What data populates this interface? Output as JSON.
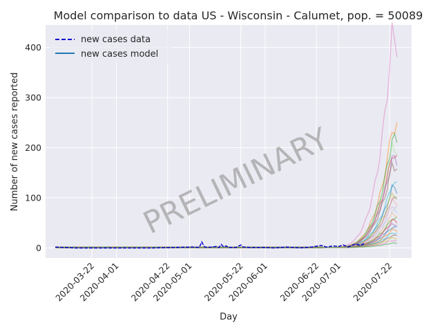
{
  "chart_data": {
    "type": "line",
    "title": "Model comparison to data US - Wisconsin - Calumet, pop. = 50089",
    "xlabel": "Day",
    "ylabel": "Number of new cases reported",
    "watermark": "PRELIMINARY",
    "xlim": [
      "2020-03-03",
      "2020-07-31"
    ],
    "ylim": [
      -20,
      445
    ],
    "x_ticks": [
      "2020-03-22",
      "2020-04-01",
      "2020-04-22",
      "2020-05-01",
      "2020-05-22",
      "2020-06-01",
      "2020-06-22",
      "2020-07-01",
      "2020-07-22"
    ],
    "y_ticks": [
      0,
      100,
      200,
      300,
      400
    ],
    "grid": true,
    "legend_position": "top-left",
    "legend": [
      {
        "label": "new cases data",
        "style": "dashed",
        "color": "#0000cc"
      },
      {
        "label": "new cases model",
        "style": "solid",
        "color": "#1f77b4"
      }
    ],
    "data_series": {
      "name": "new cases data",
      "color": "#0000cc",
      "points": [
        [
          "2020-03-07",
          2
        ],
        [
          "2020-03-15",
          0
        ],
        [
          "2020-03-25",
          0
        ],
        [
          "2020-04-05",
          0
        ],
        [
          "2020-04-15",
          0
        ],
        [
          "2020-04-25",
          1
        ],
        [
          "2020-05-02",
          2
        ],
        [
          "2020-05-05",
          1
        ],
        [
          "2020-05-06",
          12
        ],
        [
          "2020-05-07",
          3
        ],
        [
          "2020-05-08",
          1
        ],
        [
          "2020-05-10",
          2
        ],
        [
          "2020-05-12",
          3
        ],
        [
          "2020-05-13",
          1
        ],
        [
          "2020-05-14",
          7
        ],
        [
          "2020-05-15",
          2
        ],
        [
          "2020-05-16",
          4
        ],
        [
          "2020-05-17",
          1
        ],
        [
          "2020-05-20",
          1
        ],
        [
          "2020-05-22",
          6
        ],
        [
          "2020-05-23",
          2
        ],
        [
          "2020-05-26",
          1
        ],
        [
          "2020-06-01",
          1
        ],
        [
          "2020-06-05",
          0
        ],
        [
          "2020-06-10",
          2
        ],
        [
          "2020-06-15",
          0
        ],
        [
          "2020-06-20",
          2
        ],
        [
          "2020-06-24",
          5
        ],
        [
          "2020-06-26",
          2
        ],
        [
          "2020-06-29",
          4
        ],
        [
          "2020-07-01",
          3
        ],
        [
          "2020-07-03",
          6
        ],
        [
          "2020-07-05",
          2
        ],
        [
          "2020-07-08",
          8
        ],
        [
          "2020-07-10",
          5
        ],
        [
          "2020-07-12",
          10
        ]
      ]
    },
    "model_series": [
      {
        "color": "#e377c2",
        "peak": 425,
        "end": 405
      },
      {
        "color": "#ff7f0e",
        "peak": 238,
        "end": 240
      },
      {
        "color": "#2ca02c",
        "peak": 220,
        "end": 210
      },
      {
        "color": "#98df8a",
        "peak": 200,
        "end": 195
      },
      {
        "color": "#d62728",
        "peak": 190,
        "end": 175
      },
      {
        "color": "#9467bd",
        "peak": 180,
        "end": 170
      },
      {
        "color": "#8c564b",
        "peak": 165,
        "end": 160
      },
      {
        "color": "#17becf",
        "peak": 130,
        "end": 125
      },
      {
        "color": "#1f77b4",
        "peak": 120,
        "end": 115
      },
      {
        "color": "#bcbd22",
        "peak": 110,
        "end": 100
      },
      {
        "color": "#7f7f7f",
        "peak": 100,
        "end": 95
      },
      {
        "color": "#ff9896",
        "peak": 95,
        "end": 90
      },
      {
        "color": "#c5b0d5",
        "peak": 85,
        "end": 80
      },
      {
        "color": "#aec7e8",
        "peak": 75,
        "end": 70
      },
      {
        "color": "#ffbb78",
        "peak": 68,
        "end": 65
      },
      {
        "color": "#2ca02c",
        "peak": 60,
        "end": 58
      },
      {
        "color": "#d62728",
        "peak": 55,
        "end": 52
      },
      {
        "color": "#9467bd",
        "peak": 48,
        "end": 46
      },
      {
        "color": "#1f77b4",
        "peak": 42,
        "end": 40
      },
      {
        "color": "#ff7f0e",
        "peak": 36,
        "end": 35
      },
      {
        "color": "#17becf",
        "peak": 30,
        "end": 29
      },
      {
        "color": "#8c564b",
        "peak": 25,
        "end": 24
      },
      {
        "color": "#bcbd22",
        "peak": 20,
        "end": 19
      },
      {
        "color": "#e377c2",
        "peak": 15,
        "end": 14
      },
      {
        "color": "#2ca02c",
        "peak": 10,
        "end": 9
      }
    ]
  }
}
